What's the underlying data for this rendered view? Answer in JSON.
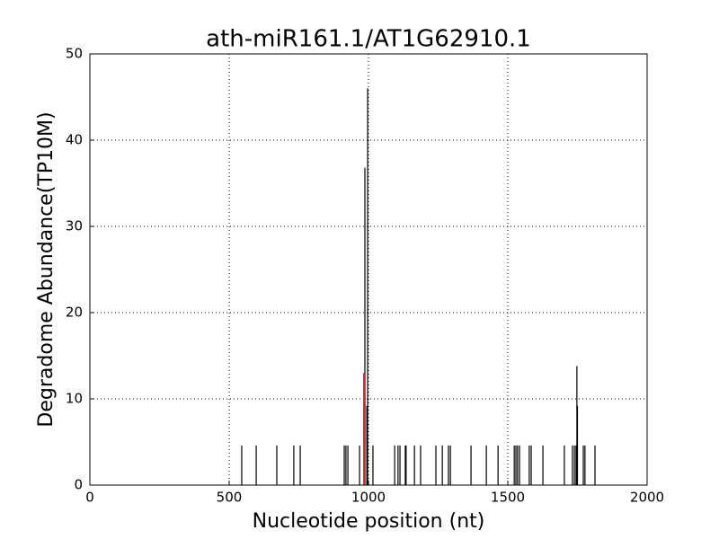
{
  "chart_data": {
    "type": "stem",
    "title": "ath-miR161.1/AT1G62910.1",
    "x_label": "Nucleotide position (nt)",
    "y_label": "Degradome Abundance(TP10M)",
    "series": [
      {
        "color": "#000000",
        "x": [
          545,
          597,
          671,
          732,
          755,
          913,
          919,
          926,
          968,
          987,
          994,
          997,
          1016,
          1094,
          1106,
          1113,
          1132,
          1135,
          1165,
          1187,
          1242,
          1265,
          1287,
          1294,
          1368,
          1423,
          1465,
          1523,
          1529,
          1535,
          1542,
          1577,
          1584,
          1626,
          1703,
          1732,
          1739,
          1745,
          1748,
          1750,
          1771,
          1777,
          1813
        ],
        "values": [
          4.6,
          4.6,
          4.6,
          4.6,
          4.6,
          4.6,
          4.6,
          4.6,
          4.6,
          36.8,
          9.2,
          46,
          4.6,
          4.6,
          4.6,
          4.6,
          4.6,
          4.6,
          4.6,
          4.6,
          4.6,
          4.6,
          4.6,
          4.6,
          4.6,
          4.6,
          4.6,
          4.6,
          4.6,
          4.6,
          4.6,
          4.6,
          4.6,
          4.6,
          4.6,
          4.6,
          4.6,
          4.6,
          13.8,
          9.2,
          4.6,
          4.6,
          4.6
        ]
      },
      {
        "color": "#d62728",
        "x": [
          984
        ],
        "values": [
          13
        ]
      }
    ],
    "xlim": [
      0,
      2000
    ],
    "xticks": [
      0,
      500,
      1000,
      1500,
      2000
    ],
    "ylim": [
      0,
      50
    ],
    "yticks": [
      0,
      10,
      20,
      30,
      40,
      50
    ],
    "grid": true
  }
}
